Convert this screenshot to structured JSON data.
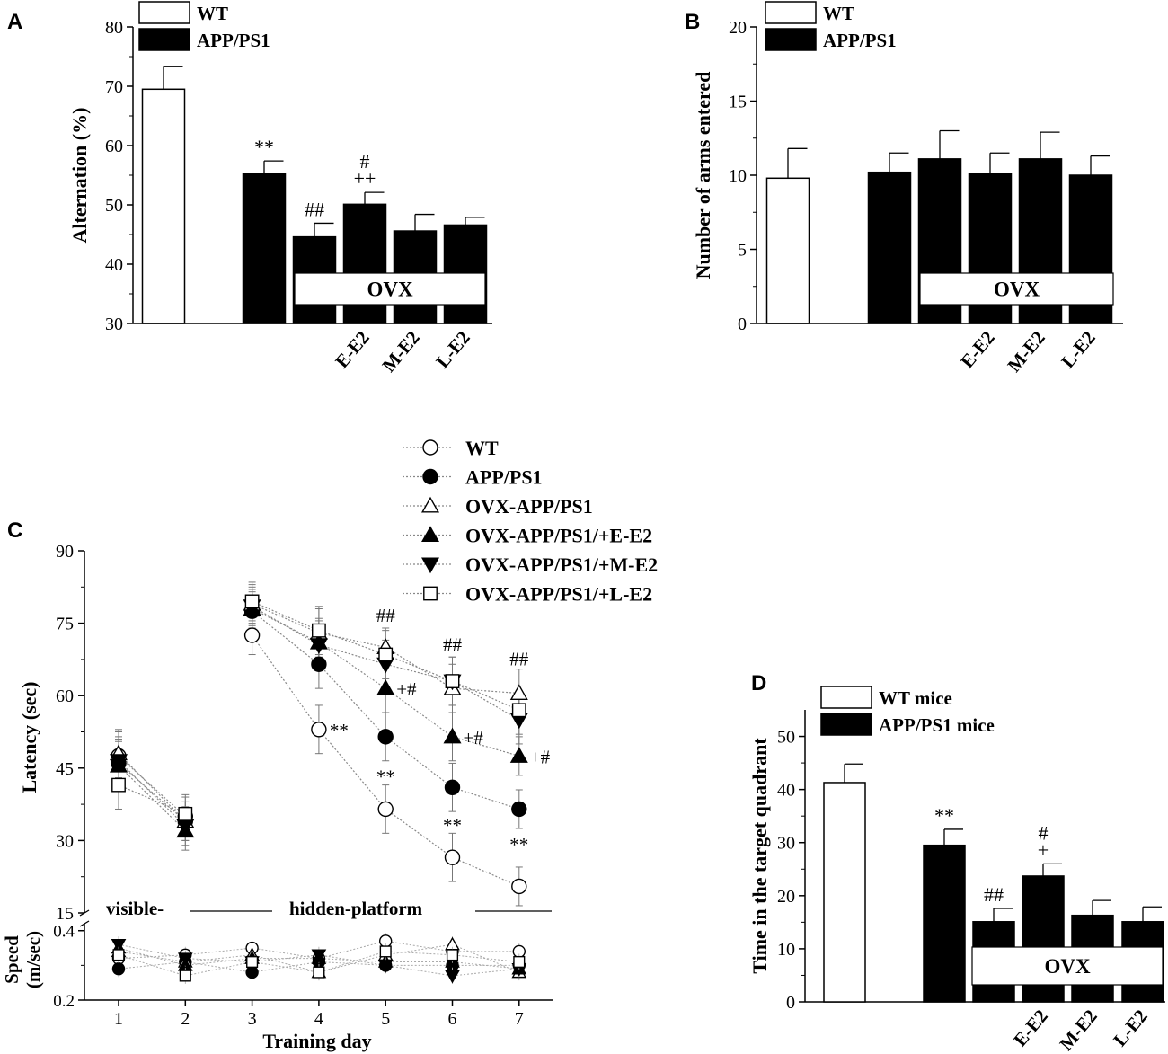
{
  "chart_data": [
    {
      "panel": "A",
      "type": "bar",
      "ylabel": "Alternation (%)",
      "ylim": [
        30,
        80
      ],
      "yticks": [
        30,
        40,
        50,
        60,
        70,
        80
      ],
      "legend": [
        "WT",
        "APP/PS1"
      ],
      "ovx_label": "OVX",
      "bars": [
        {
          "group": "WT",
          "value": 69.5,
          "err": 3.8,
          "annot": []
        },
        {
          "group": "APP/PS1",
          "value": 55.2,
          "err": 2.2,
          "annot": [
            "**"
          ]
        },
        {
          "group": "OVX",
          "value": 44.6,
          "err": 2.3,
          "annot": [
            "##"
          ]
        },
        {
          "group": "OVX",
          "label": "E-E2",
          "value": 50.1,
          "err": 2.0,
          "annot": [
            "#",
            "++"
          ]
        },
        {
          "group": "OVX",
          "label": "M-E2",
          "value": 45.6,
          "err": 2.8,
          "annot": []
        },
        {
          "group": "OVX",
          "label": "L-E2",
          "value": 46.6,
          "err": 1.3,
          "annot": []
        }
      ]
    },
    {
      "panel": "B",
      "type": "bar",
      "ylabel": "Number of arms entered",
      "ylim": [
        0,
        20
      ],
      "yticks": [
        0,
        5,
        10,
        15,
        20
      ],
      "legend": [
        "WT",
        "APP/PS1"
      ],
      "ovx_label": "OVX",
      "bars": [
        {
          "group": "WT",
          "value": 9.8,
          "err": 2.0,
          "annot": []
        },
        {
          "group": "APP/PS1",
          "value": 10.2,
          "err": 1.3,
          "annot": []
        },
        {
          "group": "OVX",
          "value": 11.1,
          "err": 1.9,
          "annot": []
        },
        {
          "group": "OVX",
          "label": "E-E2",
          "value": 10.1,
          "err": 1.4,
          "annot": []
        },
        {
          "group": "OVX",
          "label": "M-E2",
          "value": 11.1,
          "err": 1.8,
          "annot": []
        },
        {
          "group": "OVX",
          "label": "L-E2",
          "value": 10.0,
          "err": 1.3,
          "annot": []
        }
      ]
    },
    {
      "panel": "C",
      "type": "line",
      "xlabel": "Training day",
      "ylabel": "Latency (sec)",
      "ylabel_speed": "Speed (m/sec)",
      "x": [
        1,
        2,
        3,
        4,
        5,
        6,
        7
      ],
      "ylim": [
        15,
        90
      ],
      "yticks": [
        15,
        30,
        45,
        60,
        75,
        90
      ],
      "speed_ylim": [
        0.2,
        0.42
      ],
      "speed_yticks": [
        0.2,
        0.4
      ],
      "phase_labels": {
        "visible": "visible-",
        "hidden": "hidden-platform"
      },
      "series": [
        {
          "name": "WT",
          "marker": "circle-open",
          "values": [
            47.5,
            35.0,
            72.5,
            53.0,
            36.5,
            26.5,
            20.5
          ],
          "err": [
            5,
            4,
            4,
            5,
            5,
            5,
            4
          ],
          "speed": [
            0.32,
            0.33,
            0.35,
            0.32,
            0.37,
            0.34,
            0.34
          ]
        },
        {
          "name": "APP/PS1",
          "marker": "circle-filled",
          "values": [
            46.0,
            34.0,
            77.5,
            66.5,
            51.5,
            41.0,
            36.5
          ],
          "err": [
            5,
            4,
            4,
            5,
            5,
            5,
            4
          ],
          "speed": [
            0.29,
            0.31,
            0.28,
            0.31,
            0.3,
            0.3,
            0.3
          ]
        },
        {
          "name": "OVX-APP/PS1",
          "marker": "triangle-up-open",
          "values": [
            48.0,
            34.0,
            79.0,
            73.0,
            70.0,
            61.5,
            60.5
          ],
          "err": [
            5,
            4,
            4,
            5,
            4,
            5,
            5
          ],
          "speed": [
            0.34,
            0.31,
            0.33,
            0.28,
            0.33,
            0.36,
            0.28
          ]
        },
        {
          "name": "OVX-APP/PS1/+E-E2",
          "marker": "triangle-up-filled",
          "values": [
            45.5,
            32.0,
            78.0,
            71.0,
            61.5,
            51.5,
            47.5
          ],
          "err": [
            5,
            4,
            4,
            5,
            5,
            5,
            4
          ],
          "speed": [
            0.35,
            0.3,
            0.32,
            0.32,
            0.31,
            0.31,
            0.29
          ]
        },
        {
          "name": "OVX-APP/PS1/+M-E2",
          "marker": "triangle-down-filled",
          "values": [
            46.5,
            33.0,
            78.5,
            70.5,
            66.5,
            63.0,
            55.0
          ],
          "err": [
            5,
            4,
            4,
            5,
            5,
            5,
            5
          ],
          "speed": [
            0.36,
            0.32,
            0.31,
            0.33,
            0.3,
            0.27,
            0.29
          ]
        },
        {
          "name": "OVX-APP/PS1/+L-E2",
          "marker": "square-open",
          "values": [
            41.5,
            35.5,
            79.5,
            73.5,
            68.5,
            63.0,
            57.0
          ],
          "err": [
            5,
            4,
            4,
            5,
            5,
            5,
            5
          ],
          "speed": [
            0.33,
            0.27,
            0.31,
            0.28,
            0.34,
            0.33,
            0.31
          ]
        }
      ],
      "annotations": [
        {
          "x": 4,
          "y": 53,
          "text": "**",
          "side": "right"
        },
        {
          "x": 5,
          "y": 43,
          "text": "**",
          "side": "center"
        },
        {
          "x": 6,
          "y": 33,
          "text": "**",
          "side": "center"
        },
        {
          "x": 7,
          "y": 29,
          "text": "**",
          "side": "center"
        },
        {
          "x": 5,
          "y": 61.5,
          "text": "+#",
          "side": "right"
        },
        {
          "x": 6,
          "y": 51.5,
          "text": "+#",
          "side": "right"
        },
        {
          "x": 7,
          "y": 47.5,
          "text": "+#",
          "side": "right"
        },
        {
          "x": 5,
          "y": 76,
          "text": "##",
          "side": "center"
        },
        {
          "x": 6,
          "y": 70,
          "text": "##",
          "side": "center"
        },
        {
          "x": 7,
          "y": 67,
          "text": "##",
          "side": "center"
        }
      ]
    },
    {
      "panel": "D",
      "type": "bar",
      "ylabel": "Time in the target quadrant",
      "ylim": [
        0,
        55
      ],
      "yticks": [
        0,
        10,
        20,
        30,
        40,
        50
      ],
      "legend": [
        "WT mice",
        "APP/PS1 mice"
      ],
      "ovx_label": "OVX",
      "bars": [
        {
          "group": "WT",
          "value": 41.3,
          "err": 3.5,
          "annot": []
        },
        {
          "group": "APP/PS1",
          "value": 29.5,
          "err": 3.0,
          "annot": [
            "**"
          ]
        },
        {
          "group": "OVX",
          "value": 15.1,
          "err": 2.5,
          "annot": [
            "##"
          ]
        },
        {
          "group": "OVX",
          "label": "E-E2",
          "value": 23.7,
          "err": 2.3,
          "annot": [
            "#",
            "+"
          ]
        },
        {
          "group": "OVX",
          "label": "M-E2",
          "value": 16.3,
          "err": 2.8,
          "annot": []
        },
        {
          "group": "OVX",
          "label": "L-E2",
          "value": 15.1,
          "err": 2.8,
          "annot": []
        }
      ]
    }
  ]
}
